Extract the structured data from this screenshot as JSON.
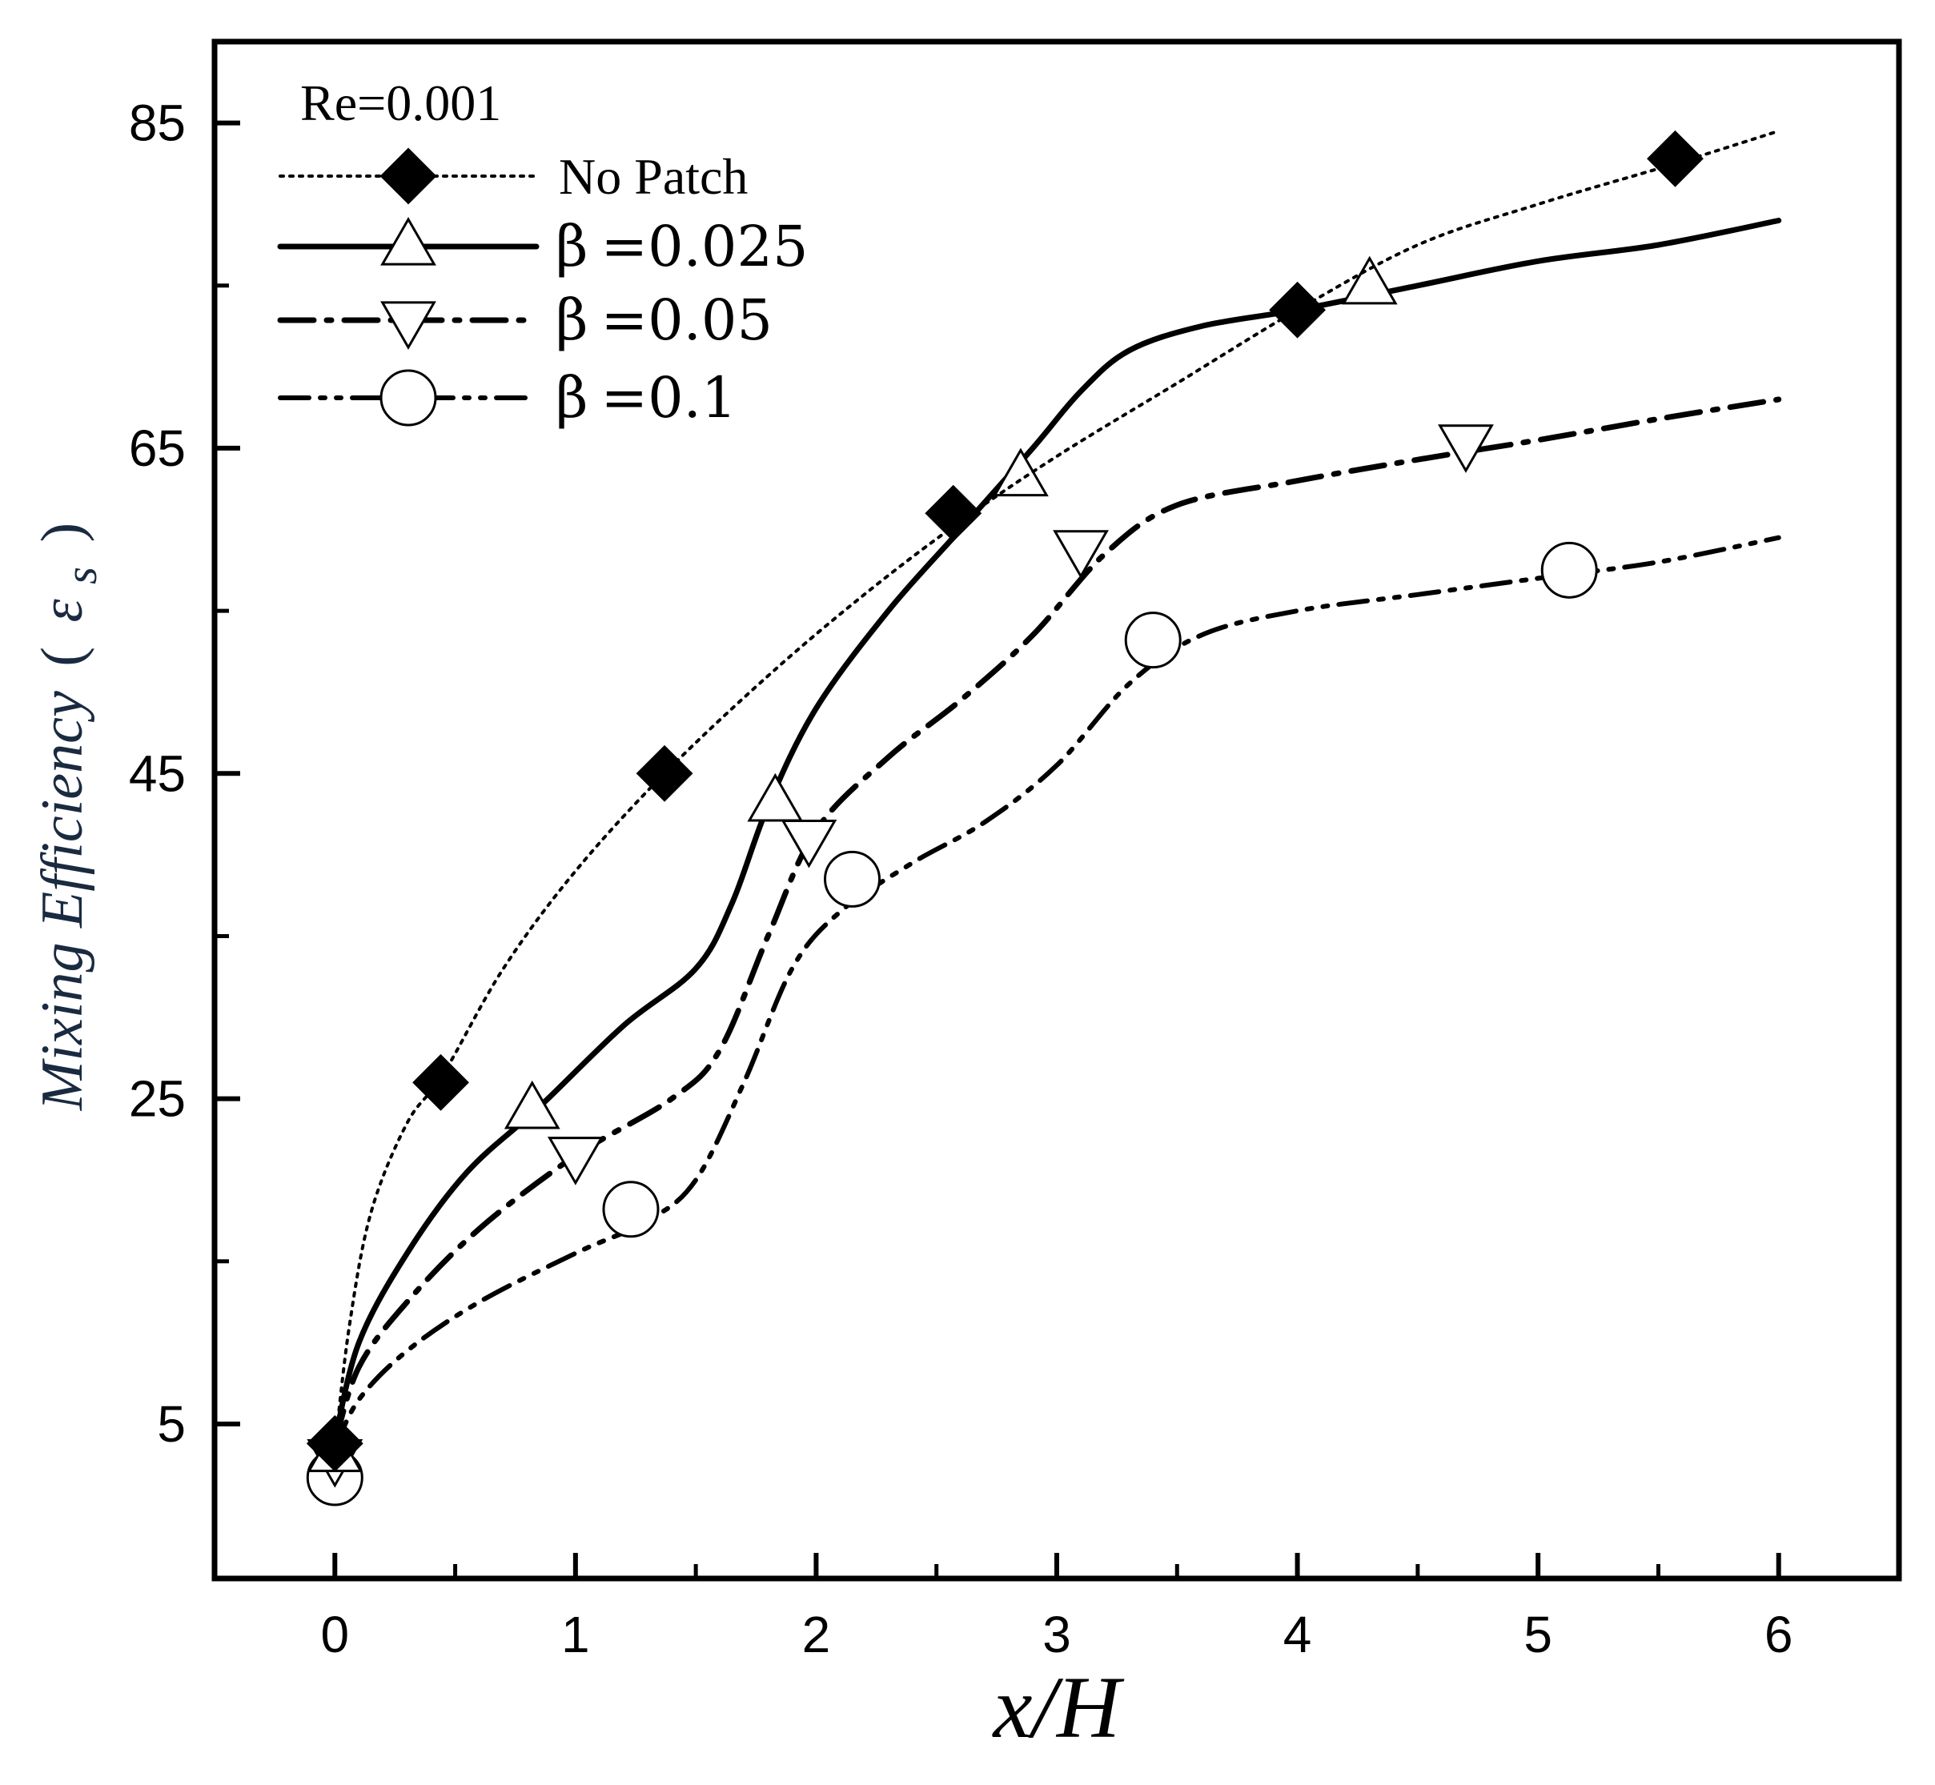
{
  "chart_data": {
    "type": "line",
    "title": "",
    "annotation": "Re=0.001",
    "xlabel": "x/H",
    "ylabel_text": "Mixing Efficiency",
    "ylabel_paren_open": "(",
    "ylabel_symbol": "ε",
    "ylabel_subscript": "s",
    "ylabel_paren_close": ")",
    "xlim": [
      -0.5,
      6.5
    ],
    "ylim": [
      -4.5,
      90
    ],
    "xticks": [
      0,
      1,
      2,
      3,
      4,
      5,
      6
    ],
    "xtick_labels": [
      "0",
      "1",
      "2",
      "3",
      "4",
      "5",
      "6"
    ],
    "xminor": [
      0.5,
      1.5,
      2.5,
      3.5,
      4.5,
      5.5
    ],
    "yticks": [
      5,
      25,
      45,
      65,
      85
    ],
    "ytick_labels": [
      "5",
      "25",
      "45",
      "65",
      "85"
    ],
    "yminor": [
      15,
      35,
      55,
      75
    ],
    "grid": false,
    "legend_position": "top-left",
    "series": [
      {
        "name": "No Patch",
        "marker": "diamond-filled",
        "line": "dotted",
        "x": [
          0,
          0.06,
          0.15,
          0.3,
          0.45,
          0.7,
          1.0,
          1.37,
          1.8,
          2.2,
          2.6,
          3.0,
          3.5,
          4.0,
          4.5,
          5.0,
          5.57,
          6.0
        ],
        "values": [
          3.5,
          11,
          18,
          23.5,
          26.5,
          33,
          39,
          45,
          51,
          56,
          60.5,
          64.5,
          69,
          73.5,
          77.5,
          80,
          82.5,
          84.5
        ],
        "marker_x": [
          0,
          0.44,
          1.37,
          2.57,
          4.0,
          5.57
        ],
        "marker_values": [
          3.8,
          26,
          45,
          61,
          73.5,
          82.8
        ]
      },
      {
        "name": "β =0.025",
        "legend_beta": "β",
        "legend_value": "=0.025",
        "marker": "triangle-up-open",
        "line": "solid",
        "x": [
          0,
          0.1,
          0.3,
          0.55,
          0.85,
          1.2,
          1.5,
          1.65,
          1.8,
          2.0,
          2.3,
          2.6,
          2.9,
          3.1,
          3.3,
          3.6,
          4.0,
          4.5,
          5.0,
          5.5,
          6.0
        ],
        "values": [
          4,
          10,
          15.5,
          20.5,
          24.5,
          29.5,
          33,
          37,
          43,
          49,
          55,
          60,
          65,
          68.5,
          71,
          72.5,
          73.5,
          75,
          76.5,
          77.5,
          79
        ],
        "marker_x": [
          0,
          0.82,
          1.83,
          2.85,
          4.3
        ],
        "marker_values": [
          3.2,
          24.3,
          43.2,
          63.2,
          75
        ]
      },
      {
        "name": "β =0.05",
        "legend_beta": "β",
        "legend_value": "=0.05",
        "marker": "triangle-down-open",
        "line": "dashdot",
        "x": [
          0,
          0.1,
          0.3,
          0.6,
          1.0,
          1.4,
          1.6,
          1.8,
          2.0,
          2.3,
          2.6,
          2.9,
          3.2,
          3.5,
          4.0,
          4.5,
          5.0,
          5.5,
          6.0
        ],
        "values": [
          3.8,
          8.5,
          12.5,
          17,
          21.5,
          25,
          28,
          35,
          41.5,
          46,
          49.5,
          53.5,
          58.5,
          61.5,
          63,
          64.3,
          65.5,
          66.8,
          68
        ],
        "marker_x": [
          0,
          1.0,
          1.97,
          3.1,
          4.7
        ],
        "marker_values": [
          2.9,
          21.5,
          41,
          58.8,
          65.3
        ]
      },
      {
        "name": "β =0.1",
        "legend_beta": "β",
        "legend_value": "=0.1",
        "marker": "circle-open",
        "line": "dashdotdot",
        "x": [
          0,
          0.1,
          0.3,
          0.6,
          1.0,
          1.3,
          1.5,
          1.7,
          1.9,
          2.1,
          2.4,
          2.7,
          3.0,
          3.3,
          3.6,
          4.0,
          4.5,
          5.0,
          5.5,
          6.0
        ],
        "values": [
          3.5,
          6.5,
          9.5,
          12.5,
          15.5,
          17.5,
          20,
          26,
          33,
          36.5,
          39.5,
          42,
          45.5,
          50.5,
          53.5,
          55,
          56,
          57,
          58,
          59.5
        ],
        "marker_x": [
          0,
          1.23,
          2.15,
          3.4,
          5.13
        ],
        "marker_values": [
          1.7,
          18.2,
          38.5,
          53.2,
          57.5
        ]
      }
    ]
  }
}
